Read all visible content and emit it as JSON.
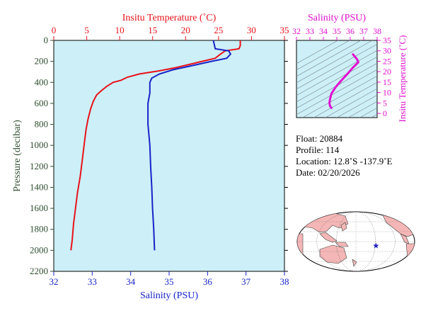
{
  "colors": {
    "temperature": "#e8121b",
    "salinity": "#1724c8",
    "ts_curve": "#e010d0",
    "pressure_axis": "#2f4f2f",
    "plot_bg": "#cdeff7",
    "land": "#f4b6b6",
    "ocean": "#ffffff",
    "marker": "#2020c0"
  },
  "chart_data": [
    {
      "type": "line",
      "title": "",
      "temp_axis_label": "Insitu Temperature (˚C)",
      "sal_axis_label": "Salinity (PSU)",
      "pressure_axis_label": "Pressure (decibar)",
      "temp_lim": [
        0,
        35
      ],
      "sal_lim": [
        32,
        38
      ],
      "pressure_lim": [
        0,
        2200
      ],
      "temp_ticks": [
        "0",
        "5",
        "10",
        "15",
        "20",
        "25",
        "30",
        "35"
      ],
      "sal_ticks": [
        "32",
        "33",
        "34",
        "35",
        "36",
        "37",
        "38"
      ],
      "pressure_ticks": [
        "0",
        "200",
        "400",
        "600",
        "800",
        "1000",
        "1200",
        "1400",
        "1600",
        "1800",
        "2000",
        "2200"
      ],
      "series": [
        {
          "axis": "temperature",
          "values": [
            [
              28.3,
              0
            ],
            [
              28.3,
              50
            ],
            [
              28.1,
              80
            ],
            [
              26.0,
              100
            ],
            [
              25.3,
              130
            ],
            [
              24.5,
              170
            ],
            [
              22.5,
              200
            ],
            [
              20.5,
              230
            ],
            [
              18.5,
              260
            ],
            [
              16.0,
              290
            ],
            [
              13.0,
              320
            ],
            [
              11.2,
              350
            ],
            [
              10.2,
              380
            ],
            [
              9.0,
              400
            ],
            [
              8.0,
              440
            ],
            [
              7.2,
              480
            ],
            [
              6.5,
              520
            ],
            [
              6.0,
              580
            ],
            [
              5.6,
              650
            ],
            [
              5.2,
              750
            ],
            [
              4.9,
              850
            ],
            [
              4.6,
              1000
            ],
            [
              4.3,
              1150
            ],
            [
              4.0,
              1300
            ],
            [
              3.6,
              1450
            ],
            [
              3.3,
              1600
            ],
            [
              3.0,
              1750
            ],
            [
              2.8,
              1900
            ],
            [
              2.6,
              2000
            ]
          ]
        },
        {
          "axis": "salinity",
          "values": [
            [
              36.15,
              0
            ],
            [
              36.2,
              80
            ],
            [
              36.55,
              100
            ],
            [
              36.6,
              130
            ],
            [
              36.5,
              170
            ],
            [
              36.1,
              200
            ],
            [
              35.6,
              240
            ],
            [
              35.1,
              280
            ],
            [
              34.75,
              320
            ],
            [
              34.55,
              360
            ],
            [
              34.5,
              400
            ],
            [
              34.5,
              500
            ],
            [
              34.45,
              600
            ],
            [
              34.45,
              800
            ],
            [
              34.5,
              1000
            ],
            [
              34.52,
              1200
            ],
            [
              34.55,
              1400
            ],
            [
              34.57,
              1600
            ],
            [
              34.6,
              1800
            ],
            [
              34.62,
              2000
            ]
          ]
        }
      ]
    },
    {
      "type": "line",
      "title": "",
      "xlabel": "Salinity (PSU)",
      "ylabel": "Insitu Temperature (˚C)",
      "xlim": [
        32,
        38
      ],
      "ylim": [
        -2,
        35
      ],
      "x_ticks": [
        "32",
        "33",
        "34",
        "35",
        "36",
        "37",
        "38"
      ],
      "y_ticks": [
        "0",
        "5",
        "10",
        "15",
        "20",
        "25",
        "30",
        "35"
      ],
      "series": [
        {
          "values": [
            [
              36.2,
              28.3
            ],
            [
              36.5,
              26.0
            ],
            [
              36.6,
              24.5
            ],
            [
              36.2,
              22.0
            ],
            [
              35.8,
              19.0
            ],
            [
              35.3,
              15.5
            ],
            [
              34.9,
              12.5
            ],
            [
              34.6,
              9.5
            ],
            [
              34.5,
              7.0
            ],
            [
              34.45,
              5.0
            ],
            [
              34.5,
              3.5
            ],
            [
              34.6,
              2.6
            ]
          ]
        }
      ]
    }
  ],
  "float_info": {
    "float_line": "Float:  20884",
    "profile_line": "Profile:  114",
    "location_line": "Location:  12.8˚S  -137.9˚E",
    "date_line": "Date:  02/20/2026"
  },
  "map": {
    "marker_lat": -12.8,
    "marker_lon": -137.9,
    "center_lon": 160
  }
}
